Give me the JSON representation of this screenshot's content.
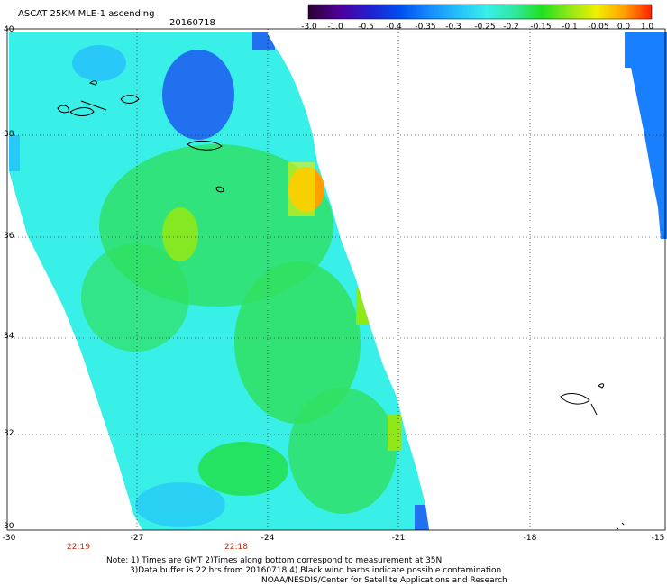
{
  "header": {
    "title": "ASCAT 25KM MLE-1 ascending",
    "date": "20160718"
  },
  "colorbar": {
    "labels": [
      "-3.0",
      "-1.0",
      "-0.5",
      "-0.4",
      "-0.35",
      "-0.3",
      "-0.25",
      "-0.2",
      "-0.15",
      "-0.1",
      "-0.05",
      "0.0",
      "1.0"
    ],
    "stops": [
      "#2a0030",
      "#50009a",
      "#2020d0",
      "#0050f0",
      "#1890ff",
      "#28c8f8",
      "#38f0e8",
      "#30e8a0",
      "#20e020",
      "#90e818",
      "#f0f000",
      "#ffa000",
      "#ff2000"
    ]
  },
  "axes": {
    "lat_labels": [
      "40",
      "38",
      "36",
      "34",
      "32",
      "30"
    ],
    "lon_labels": [
      "-30",
      "-27",
      "-24",
      "-21",
      "-18",
      "-15"
    ],
    "lat_range": [
      30,
      40
    ],
    "lon_range": [
      -30,
      -15
    ]
  },
  "times": [
    "22:19",
    "22:18"
  ],
  "notes": [
    "Note: 1) Times are GMT 2)Times along bottom correspond to measurement at 35N",
    "3)Data buffer is 22 hrs from 20160718 4) Black wind barbs indicate possible contamination",
    "NOAA/NESDIS/Center for Satellite Applications and Research"
  ],
  "colors": {
    "swath_cyan": "#38f0e8",
    "swath_green": "#30e060",
    "swath_blue": "#2070f0",
    "edge_yellow": "#f0f000",
    "edge_orange": "#ffa000",
    "time_red": "#c03010"
  }
}
